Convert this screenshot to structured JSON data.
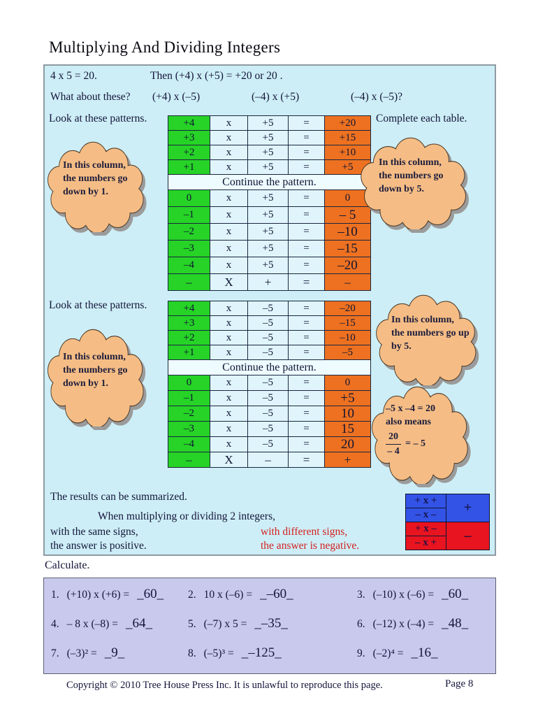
{
  "page": {
    "title": "Multiplying And Dividing Integers",
    "footer_copyright": "Copyright © 2010 Tree House Press Inc.  It is unlawful to reproduce this page.",
    "footer_page": "Page 8"
  },
  "intro": {
    "fact": "4 x 5 = 20.",
    "then": "Then (+4) x (+5)  = +20 or 20 .",
    "question": "What about these?",
    "expr1": "(+4) x (–5)",
    "expr2": "(–4) x (+5)",
    "expr3": "(–4) x (–5)?"
  },
  "labels": {
    "look1": "Look at these patterns.",
    "complete": "Complete each table.",
    "look2": "Look at these patterns."
  },
  "table1": {
    "continue_label": "Continue the pattern.",
    "rows_top": [
      [
        "+4",
        "x",
        "+5",
        "=",
        "+20"
      ],
      [
        "+3",
        "x",
        "+5",
        "=",
        "+15"
      ],
      [
        "+2",
        "x",
        "+5",
        "=",
        "+10"
      ],
      [
        "+1",
        "x",
        "+5",
        "=",
        "+5"
      ]
    ],
    "rows_bottom": [
      [
        "0",
        "x",
        "+5",
        "=",
        "0"
      ],
      [
        "–1",
        "x",
        "+5",
        "=",
        "– 5"
      ],
      [
        "–2",
        "x",
        "+5",
        "=",
        "–10"
      ],
      [
        "–3",
        "x",
        "+5",
        "=",
        "–15"
      ],
      [
        "–4",
        "x",
        "+5",
        "=",
        "–20"
      ],
      [
        "–",
        "X",
        "+",
        "=",
        "–"
      ]
    ]
  },
  "table2": {
    "continue_label": "Continue the pattern.",
    "rows_top": [
      [
        "+4",
        "x",
        "–5",
        "=",
        "–20"
      ],
      [
        "+3",
        "x",
        "–5",
        "=",
        "–15"
      ],
      [
        "+2",
        "x",
        "–5",
        "=",
        "–10"
      ],
      [
        "+1",
        "x",
        "–5",
        "=",
        "–5"
      ]
    ],
    "rows_bottom": [
      [
        "0",
        "x",
        "–5",
        "=",
        "0"
      ],
      [
        "–1",
        "x",
        "–5",
        "=",
        "+5"
      ],
      [
        "–2",
        "x",
        "–5",
        "=",
        "10"
      ],
      [
        "–3",
        "x",
        "–5",
        "=",
        "15"
      ],
      [
        "–4",
        "x",
        "–5",
        "=",
        "20"
      ],
      [
        "–",
        "X",
        "–",
        "=",
        "+"
      ]
    ]
  },
  "clouds": {
    "c1": "In this column, the numbers go down by 1.",
    "c2": "In this column, the numbers go down by 5.",
    "c3": "In this column, the numbers go down by 1.",
    "c4": "In this column, the numbers go up by 5.",
    "c5_line1": "–5 x –4 = 20",
    "c5_line2": "also means",
    "c5_frac_num": "20",
    "c5_frac_den": "– 4",
    "c5_rhs": "= – 5"
  },
  "summary": {
    "line1": "The results can be summarized.",
    "line2": "When multiplying or dividing 2 integers,",
    "same_a": "with the same signs,",
    "same_b": "the answer is positive.",
    "diff_a": "with different signs,",
    "diff_b": "the answer is negative."
  },
  "sign_table": {
    "blue_rows": [
      "+ x +",
      "– x –"
    ],
    "blue_result": "+",
    "red_rows": [
      "+ x –",
      "– x +"
    ],
    "red_result": "–"
  },
  "calculate": {
    "label": "Calculate.",
    "problems": [
      {
        "num": "1.",
        "expr": "(+10) x (+6) =",
        "ans": "_60_"
      },
      {
        "num": "2.",
        "expr": "10 x (–6)  =",
        "ans": "_–60_"
      },
      {
        "num": "3.",
        "expr": "(–10) x (–6) =",
        "ans": "_60_"
      },
      {
        "num": "4.",
        "expr": "– 8 x (–8)  =",
        "ans": "_64_"
      },
      {
        "num": "5.",
        "expr": "(–7) x 5  =",
        "ans": "_–35_"
      },
      {
        "num": "6.",
        "expr": "(–12) x (–4) =",
        "ans": "_48_"
      },
      {
        "num": "7.",
        "expr": "(–3)²   =",
        "ans": "_9_"
      },
      {
        "num": "8.",
        "expr": "(–5)³  =",
        "ans": "_–125_"
      },
      {
        "num": "9.",
        "expr": "(–2)⁴  =",
        "ans": "_16_"
      }
    ]
  },
  "colors": {
    "box_bg": "#cdeef6",
    "green": "#26d326",
    "orange": "#ed7120",
    "summary_blue": "#3353e6",
    "summary_red": "#e81420",
    "lavender": "#c9c9ee",
    "red_text": "#d42020",
    "cloud_fill": "#f5bd85"
  }
}
